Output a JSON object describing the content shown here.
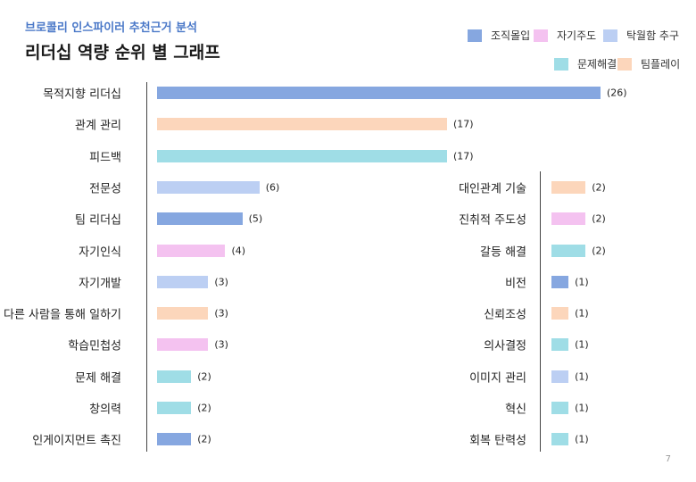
{
  "header": {
    "subtitle": "브로콜리 인스파이러 추천근거 분석",
    "title": "리더십 역량 순위 별 그래프"
  },
  "legend": [
    {
      "label": "조직몰입",
      "color": "#86a7e0"
    },
    {
      "label": "자기주도",
      "color": "#f4c2f0"
    },
    {
      "label": "탁월함 추구",
      "color": "#bccff3"
    },
    {
      "label": "문제해결",
      "color": "#9fdde6"
    },
    {
      "label": "팀플레이",
      "color": "#fcd6bb"
    }
  ],
  "page_number": "7",
  "chart_data": {
    "type": "bar",
    "orientation": "horizontal",
    "title": "리더십 역량 순위 별 그래프",
    "value_format": "(n)",
    "series_colors": {
      "조직몰입": "#86a7e0",
      "자기주도": "#f4c2f0",
      "탁월함 추구": "#bccff3",
      "문제해결": "#9fdde6",
      "팀플레이": "#fcd6bb"
    },
    "panels": [
      {
        "name": "left",
        "xlim": [
          0,
          26
        ],
        "bars": [
          {
            "label": "목적지향 리더십",
            "value": 26,
            "value_label": "(26)",
            "category": "조직몰입"
          },
          {
            "label": "관계 관리",
            "value": 17,
            "value_label": "(17)",
            "category": "팀플레이"
          },
          {
            "label": "피드백",
            "value": 17,
            "value_label": "(17)",
            "category": "문제해결"
          },
          {
            "label": "전문성",
            "value": 6,
            "value_label": "(6)",
            "category": "탁월함 추구"
          },
          {
            "label": "팀 리더십",
            "value": 5,
            "value_label": "(5)",
            "category": "조직몰입"
          },
          {
            "label": "자기인식",
            "value": 4,
            "value_label": "(4)",
            "category": "자기주도"
          },
          {
            "label": "자기개발",
            "value": 3,
            "value_label": "(3)",
            "category": "탁월함 추구"
          },
          {
            "label": "다른 사람을 통해 일하기",
            "value": 3,
            "value_label": "(3)",
            "category": "팀플레이"
          },
          {
            "label": "학습민첩성",
            "value": 3,
            "value_label": "(3)",
            "category": "자기주도"
          },
          {
            "label": "문제 해결",
            "value": 2,
            "value_label": "(2)",
            "category": "문제해결"
          },
          {
            "label": "창의력",
            "value": 2,
            "value_label": "(2)",
            "category": "문제해결"
          },
          {
            "label": "인게이지먼트 촉진",
            "value": 2,
            "value_label": "(2)",
            "category": "조직몰입"
          }
        ]
      },
      {
        "name": "right",
        "xlim": [
          0,
          26
        ],
        "bars": [
          {
            "label": "대인관계 기술",
            "value": 2,
            "value_label": "(2)",
            "category": "팀플레이"
          },
          {
            "label": "진취적 주도성",
            "value": 2,
            "value_label": "(2)",
            "category": "자기주도"
          },
          {
            "label": "갈등 해결",
            "value": 2,
            "value_label": "(2)",
            "category": "문제해결"
          },
          {
            "label": "비전",
            "value": 1,
            "value_label": "(1)",
            "category": "조직몰입"
          },
          {
            "label": "신뢰조성",
            "value": 1,
            "value_label": "(1)",
            "category": "팀플레이"
          },
          {
            "label": "의사결정",
            "value": 1,
            "value_label": "(1)",
            "category": "문제해결"
          },
          {
            "label": "이미지 관리",
            "value": 1,
            "value_label": "(1)",
            "category": "탁월함 추구"
          },
          {
            "label": "혁신",
            "value": 1,
            "value_label": "(1)",
            "category": "문제해결"
          },
          {
            "label": "회복 탄력성",
            "value": 1,
            "value_label": "(1)",
            "category": "문제해결"
          }
        ]
      }
    ]
  }
}
